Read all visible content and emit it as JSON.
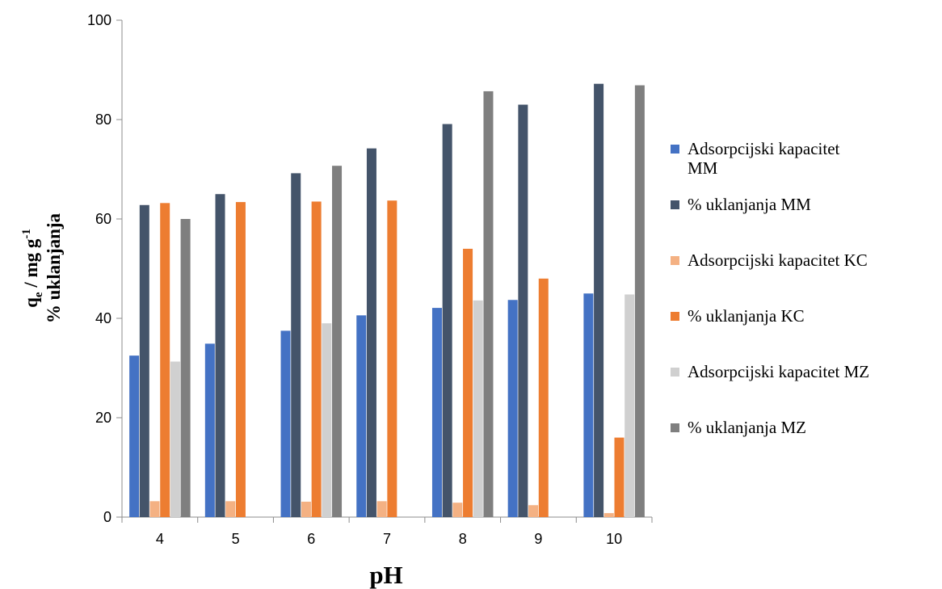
{
  "chart_data": {
    "type": "bar",
    "categories": [
      "4",
      "5",
      "6",
      "7",
      "8",
      "9",
      "10"
    ],
    "xlabel": "pH",
    "ylabel": {
      "line1_main": "q",
      "line1_sub": "e",
      "line1_rest": " / mg g",
      "line1_sup": "-1",
      "line2": "% uklanjanja"
    },
    "ylim": [
      0,
      100
    ],
    "yticks": [
      0,
      20,
      40,
      60,
      80,
      100
    ],
    "grid": false,
    "legend_position": "right",
    "series": [
      {
        "name": "Adsorpcijski kapacitet MM",
        "legend_lines": [
          "Adsorpcijski kapacitet",
          "MM"
        ],
        "color": "#4472c4",
        "values": [
          32.5,
          34.9,
          37.5,
          40.6,
          42.1,
          43.7,
          45.0
        ]
      },
      {
        "name": "% uklanjanja MM",
        "legend_lines": [
          "% uklanjanja MM"
        ],
        "color": "#44546a",
        "values": [
          62.8,
          65.0,
          69.2,
          74.2,
          79.1,
          83.0,
          87.2
        ]
      },
      {
        "name": "Adsorpcijski kapacitet KC",
        "legend_lines": [
          "Adsorpcijski kapacitet KC"
        ],
        "color": "#f4b183",
        "values": [
          3.2,
          3.2,
          3.1,
          3.2,
          2.9,
          2.4,
          0.8
        ]
      },
      {
        "name": "% uklanjanja KC",
        "legend_lines": [
          "% uklanjanja KC"
        ],
        "color": "#ed7d31",
        "values": [
          63.2,
          63.4,
          63.5,
          63.7,
          54.0,
          48.0,
          16.0
        ]
      },
      {
        "name": "Adsorpcijski kapacitet MZ",
        "legend_lines": [
          "Adsorpcijski kapacitet MZ"
        ],
        "color": "#d0d0d0",
        "values": [
          31.3,
          null,
          39.0,
          null,
          43.6,
          null,
          44.8
        ]
      },
      {
        "name": "% uklanjanja MZ",
        "legend_lines": [
          "% uklanjanja MZ"
        ],
        "color": "#7f7f7f",
        "values": [
          60.0,
          null,
          70.7,
          null,
          85.7,
          null,
          86.9
        ]
      }
    ]
  }
}
